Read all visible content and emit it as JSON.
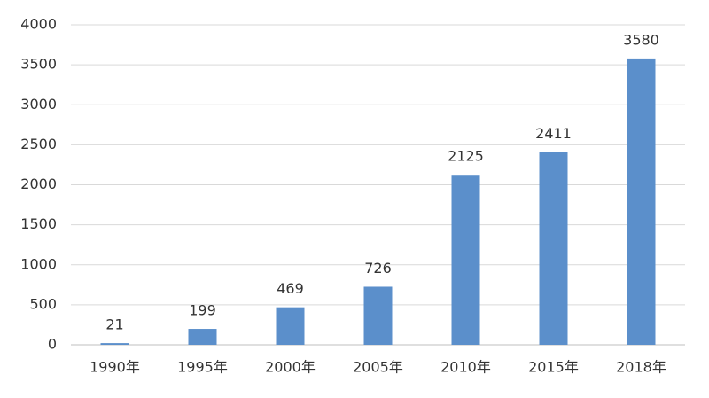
{
  "chart_data": {
    "type": "bar",
    "categories": [
      "1990年",
      "1995年",
      "2000年",
      "2005年",
      "2010年",
      "2015年",
      "2018年"
    ],
    "values": [
      21,
      199,
      469,
      726,
      2125,
      2411,
      3580
    ],
    "color": "#5b8fcb",
    "ylim": [
      0,
      4000
    ],
    "yticks": [
      0,
      500,
      1000,
      1500,
      2000,
      2500,
      3000,
      3500,
      4000
    ],
    "grid": true,
    "data_labels": true
  }
}
